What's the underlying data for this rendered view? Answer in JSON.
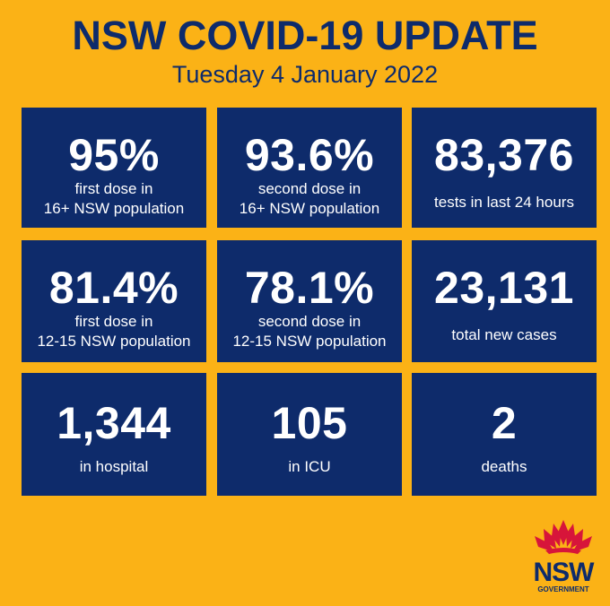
{
  "header": {
    "title": "NSW COVID-19 UPDATE",
    "date": "Tuesday 4 January 2022"
  },
  "tiles": [
    {
      "value": "95%",
      "labels": [
        "first dose in",
        "16+ NSW population"
      ]
    },
    {
      "value": "93.6%",
      "labels": [
        "second dose in",
        "16+ NSW population"
      ]
    },
    {
      "value": "83,376",
      "labels": [
        "tests in last 24 hours"
      ]
    },
    {
      "value": "81.4%",
      "labels": [
        "first dose in",
        "12-15 NSW population"
      ]
    },
    {
      "value": "78.1%",
      "labels": [
        "second dose in",
        "12-15 NSW population"
      ]
    },
    {
      "value": "23,131",
      "labels": [
        "total new cases"
      ]
    },
    {
      "value": "1,344",
      "labels": [
        "in hospital"
      ]
    },
    {
      "value": "105",
      "labels": [
        "in ICU"
      ]
    },
    {
      "value": "2",
      "labels": [
        "deaths"
      ]
    }
  ],
  "logo": {
    "name": "NSW",
    "sub": "GOVERNMENT"
  },
  "colors": {
    "background": "#FBB216",
    "navy": "#0E2B6B",
    "waratah_red": "#D7153A"
  }
}
